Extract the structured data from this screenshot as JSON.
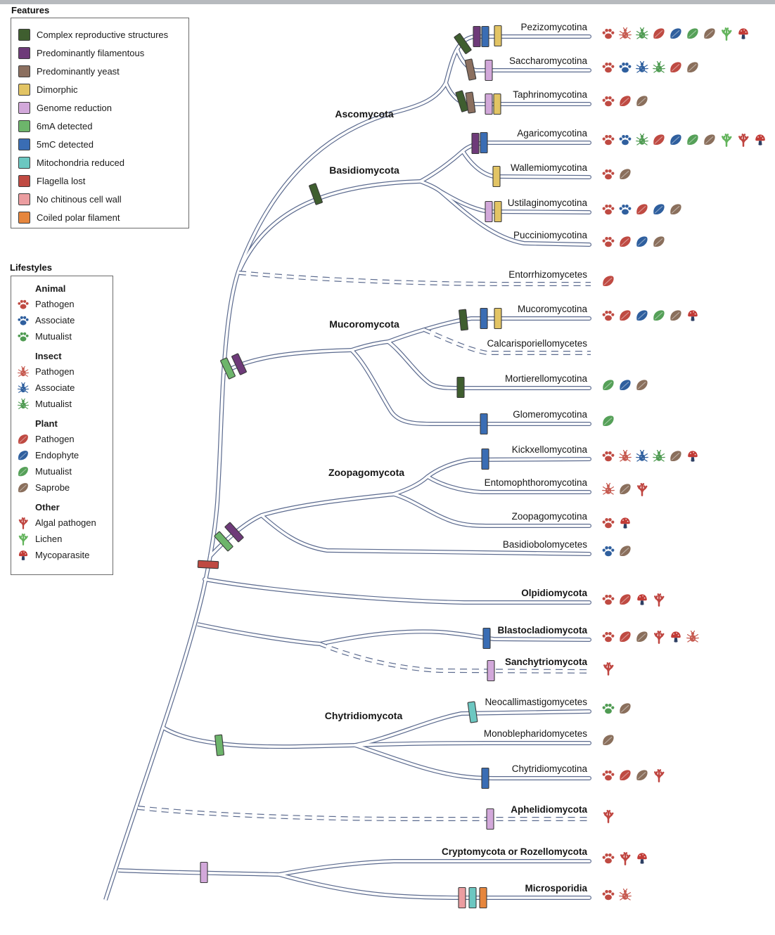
{
  "features_legend": {
    "title": "Features",
    "items": [
      {
        "id": "crs",
        "label": "Complex reproductive structures",
        "color": "#3f5e2f"
      },
      {
        "id": "fil",
        "label": "Predominantly filamentous",
        "color": "#6e3a79"
      },
      {
        "id": "yeast",
        "label": "Predominantly yeast",
        "color": "#8b6f5f"
      },
      {
        "id": "dim",
        "label": "Dimorphic",
        "color": "#e2c464"
      },
      {
        "id": "gr",
        "label": "Genome reduction",
        "color": "#d2a8da"
      },
      {
        "id": "m6a",
        "label": "6mA detected",
        "color": "#6db56b"
      },
      {
        "id": "m5c",
        "label": "5mC detected",
        "color": "#3a6db4"
      },
      {
        "id": "mito",
        "label": "Mitochondria reduced",
        "color": "#6cc7c1"
      },
      {
        "id": "flag",
        "label": "Flagella lost",
        "color": "#bf4a42"
      },
      {
        "id": "ncw",
        "label": "No chitinous cell wall",
        "color": "#eb9da0"
      },
      {
        "id": "cpf",
        "label": "Coiled polar filament",
        "color": "#e6863d"
      }
    ]
  },
  "lifestyles_legend": {
    "title": "Lifestyles",
    "groups": [
      {
        "name": "Animal",
        "items": [
          {
            "id": "ap",
            "label": "Pathogen",
            "icon": "paw",
            "color": "#bf4a42"
          },
          {
            "id": "aa",
            "label": "Associate",
            "icon": "paw",
            "color": "#2f5f9e"
          },
          {
            "id": "am",
            "label": "Mutualist",
            "icon": "paw",
            "color": "#4f9b52"
          }
        ]
      },
      {
        "name": "Insect",
        "items": [
          {
            "id": "ip",
            "label": "Pathogen",
            "icon": "bug",
            "color": "#c65a50"
          },
          {
            "id": "ia",
            "label": "Associate",
            "icon": "bug",
            "color": "#2f5f9e"
          },
          {
            "id": "im",
            "label": "Mutualist",
            "icon": "bug",
            "color": "#4f9b52"
          }
        ]
      },
      {
        "name": "Plant",
        "items": [
          {
            "id": "pp",
            "label": "Pathogen",
            "icon": "leaf",
            "color": "#bf4a42"
          },
          {
            "id": "pe",
            "label": "Endophyte",
            "icon": "leaf",
            "color": "#2f5f9e"
          },
          {
            "id": "pm",
            "label": "Mutualist",
            "icon": "leaf",
            "color": "#55a058"
          },
          {
            "id": "ps",
            "label": "Saprobe",
            "icon": "leaf",
            "color": "#8a6f5c"
          }
        ]
      },
      {
        "name": "Other",
        "items": [
          {
            "id": "alg",
            "label": "Algal pathogen",
            "icon": "algae",
            "color": "#bf4540"
          },
          {
            "id": "lic",
            "label": "Lichen",
            "icon": "algae",
            "color": "#63b45c"
          },
          {
            "id": "myc",
            "label": "Mycoparasite",
            "icon": "mushroom",
            "color": "#c23b36"
          }
        ]
      }
    ]
  },
  "tree": {
    "clade_labels": [
      "Ascomycota",
      "Basidiomycota",
      "Mucoromycota",
      "Zoopagomycota",
      "Chytridiomycota"
    ],
    "stem_marks": [
      {
        "branch": "Basidiomycota",
        "features": [
          "crs"
        ]
      },
      {
        "branch": "Mucoromycota",
        "features": [
          "m6a",
          "fil"
        ]
      },
      {
        "branch": "Zoopagomycota",
        "features": [
          "m6a",
          "fil"
        ]
      },
      {
        "branch": "trunk",
        "features": [
          "flag"
        ]
      },
      {
        "branch": "Chytridiomycota",
        "features": [
          "m6a"
        ]
      },
      {
        "branch": "Cryptomycota-stem",
        "features": [
          "gr"
        ]
      }
    ],
    "tips": [
      {
        "id": "pez",
        "name": "Pezizomycotina",
        "bold": false,
        "dashed": false,
        "features": [
          "crs",
          "fil",
          "m5c",
          "dim"
        ],
        "lifestyles": [
          "ap",
          "ip",
          "im",
          "pp",
          "pe",
          "pm",
          "ps",
          "lic",
          "myc"
        ]
      },
      {
        "id": "sac",
        "name": "Saccharomycotina",
        "bold": false,
        "dashed": false,
        "features": [
          "yeast",
          "gr"
        ],
        "lifestyles": [
          "ap",
          "aa",
          "ia",
          "im",
          "pp",
          "ps"
        ]
      },
      {
        "id": "tap",
        "name": "Taphrinomycotina",
        "bold": false,
        "dashed": false,
        "features": [
          "crs",
          "yeast",
          "gr",
          "dim"
        ],
        "lifestyles": [
          "ap",
          "pp",
          "ps"
        ]
      },
      {
        "id": "aga",
        "name": "Agaricomycotina",
        "bold": false,
        "dashed": false,
        "features": [
          "fil",
          "m5c"
        ],
        "lifestyles": [
          "ap",
          "aa",
          "im",
          "pp",
          "pe",
          "pm",
          "ps",
          "lic",
          "alg",
          "myc"
        ]
      },
      {
        "id": "wal",
        "name": "Wallemiomycotina",
        "bold": false,
        "dashed": false,
        "features": [
          "dim"
        ],
        "lifestyles": [
          "ap",
          "ps"
        ]
      },
      {
        "id": "ust",
        "name": "Ustilaginomycotina",
        "bold": false,
        "dashed": false,
        "features": [
          "gr",
          "dim"
        ],
        "lifestyles": [
          "ap",
          "aa",
          "pp",
          "pe",
          "ps"
        ]
      },
      {
        "id": "puc",
        "name": "Pucciniomycotina",
        "bold": false,
        "dashed": false,
        "features": [],
        "lifestyles": [
          "ap",
          "pp",
          "pe",
          "ps"
        ]
      },
      {
        "id": "ent",
        "name": "Entorrhizomycetes",
        "bold": false,
        "dashed": true,
        "features": [],
        "lifestyles": [
          "pp"
        ]
      },
      {
        "id": "muc",
        "name": "Mucoromycotina",
        "bold": false,
        "dashed": false,
        "features": [
          "crs",
          "m5c",
          "dim"
        ],
        "lifestyles": [
          "ap",
          "pp",
          "pe",
          "pm",
          "ps",
          "myc"
        ]
      },
      {
        "id": "cal",
        "name": "Calcarisporiellomycetes",
        "bold": false,
        "dashed": true,
        "features": [],
        "lifestyles": []
      },
      {
        "id": "mor",
        "name": "Mortierellomycotina",
        "bold": false,
        "dashed": false,
        "features": [
          "crs"
        ],
        "lifestyles": [
          "pm",
          "pe",
          "ps"
        ]
      },
      {
        "id": "glo",
        "name": "Glomeromycotina",
        "bold": false,
        "dashed": false,
        "features": [
          "m5c"
        ],
        "lifestyles": [
          "pm"
        ]
      },
      {
        "id": "kic",
        "name": "Kickxellomycotina",
        "bold": false,
        "dashed": false,
        "features": [
          "m5c"
        ],
        "lifestyles": [
          "ap",
          "ip",
          "ia",
          "im",
          "ps",
          "myc"
        ]
      },
      {
        "id": "emo",
        "name": "Entomophthoromycotina",
        "bold": false,
        "dashed": false,
        "features": [],
        "lifestyles": [
          "ip",
          "ps",
          "alg"
        ]
      },
      {
        "id": "zoo",
        "name": "Zoopagomycotina",
        "bold": false,
        "dashed": false,
        "features": [],
        "lifestyles": [
          "ap",
          "myc"
        ]
      },
      {
        "id": "bas",
        "name": "Basidiobolomycetes",
        "bold": false,
        "dashed": false,
        "features": [],
        "lifestyles": [
          "aa",
          "ps"
        ]
      },
      {
        "id": "olp",
        "name": "Olpidiomycota",
        "bold": true,
        "dashed": false,
        "features": [],
        "lifestyles": [
          "ap",
          "pp",
          "myc",
          "alg"
        ]
      },
      {
        "id": "bla",
        "name": "Blastocladiomycota",
        "bold": true,
        "dashed": false,
        "features": [
          "m5c"
        ],
        "lifestyles": [
          "ap",
          "pp",
          "ps",
          "alg",
          "myc",
          "ip"
        ]
      },
      {
        "id": "san",
        "name": "Sanchytriomycota",
        "bold": true,
        "dashed": true,
        "features": [
          "gr"
        ],
        "lifestyles": [
          "alg"
        ]
      },
      {
        "id": "neo",
        "name": "Neocallimastigomycetes",
        "bold": false,
        "dashed": false,
        "features": [
          "mito"
        ],
        "lifestyles": [
          "am",
          "ps"
        ]
      },
      {
        "id": "mon",
        "name": "Monoblepharidomycetes",
        "bold": false,
        "dashed": false,
        "features": [],
        "lifestyles": [
          "ps"
        ]
      },
      {
        "id": "chy",
        "name": "Chytridiomycotina",
        "bold": false,
        "dashed": false,
        "features": [
          "m5c"
        ],
        "lifestyles": [
          "ap",
          "pp",
          "ps",
          "alg"
        ]
      },
      {
        "id": "aph",
        "name": "Aphelidiomycota",
        "bold": true,
        "dashed": true,
        "features": [
          "gr"
        ],
        "lifestyles": [
          "alg"
        ]
      },
      {
        "id": "cry",
        "name": "Cryptomycota or Rozellomycota",
        "bold": true,
        "dashed": false,
        "features": [],
        "lifestyles": [
          "ap",
          "alg",
          "myc"
        ]
      },
      {
        "id": "mic",
        "name": "Microsporidia",
        "bold": true,
        "dashed": false,
        "features": [
          "ncw",
          "mito",
          "cpf"
        ],
        "lifestyles": [
          "ap",
          "ip"
        ]
      }
    ]
  }
}
